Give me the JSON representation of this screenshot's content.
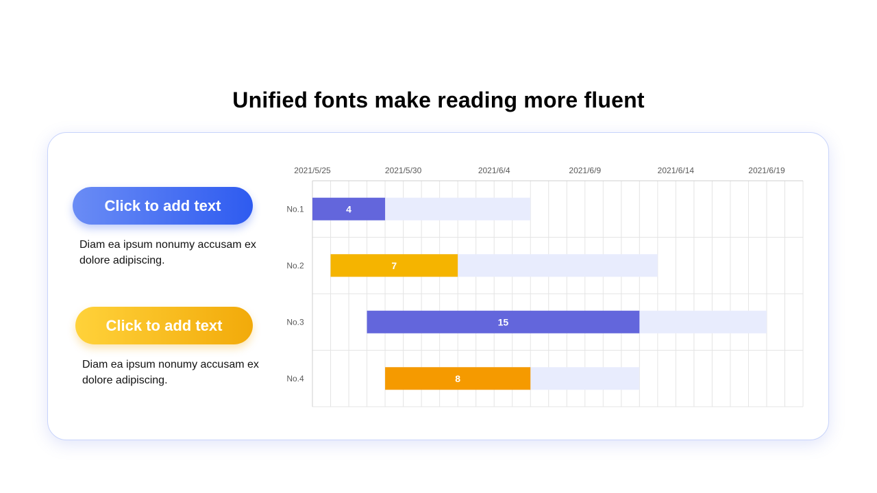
{
  "page": {
    "title": "Unified fonts make reading more fluent"
  },
  "panels": [
    {
      "button_label": "Click to add text",
      "button_color": "#2e5bf0",
      "description": "Diam ea ipsum nonumy accusam ex dolore adipiscing."
    },
    {
      "button_label": "Click to add text",
      "button_color": "#f5b400",
      "description": "Diam ea ipsum nonumy accusam ex dolore adipiscing."
    }
  ],
  "chart_data": {
    "type": "gantt",
    "title": "",
    "x_ticks": [
      "2021/5/25",
      "2021/5/30",
      "2021/6/4",
      "2021/6/9",
      "2021/6/14",
      "2021/6/19"
    ],
    "x_axis_start": "2021/5/25",
    "x_axis_end": "2021/6/21",
    "grid": true,
    "tasks": [
      {
        "label": "No.1",
        "start": "2021/5/25",
        "duration_days": 4,
        "bar_color": "#6366dc",
        "total_end": "2021/6/6",
        "value_label": "4"
      },
      {
        "label": "No.2",
        "start": "2021/5/26",
        "duration_days": 7,
        "bar_color": "#f5b400",
        "total_end": "2021/6/13",
        "value_label": "7"
      },
      {
        "label": "No.3",
        "start": "2021/5/28",
        "duration_days": 15,
        "bar_color": "#6366dc",
        "total_end": "2021/6/19",
        "value_label": "15"
      },
      {
        "label": "No.4",
        "start": "2021/5/29",
        "duration_days": 8,
        "bar_color": "#f59a00",
        "total_end": "2021/6/12",
        "value_label": "8"
      }
    ],
    "background_bar_color": "#e8ecfd"
  }
}
